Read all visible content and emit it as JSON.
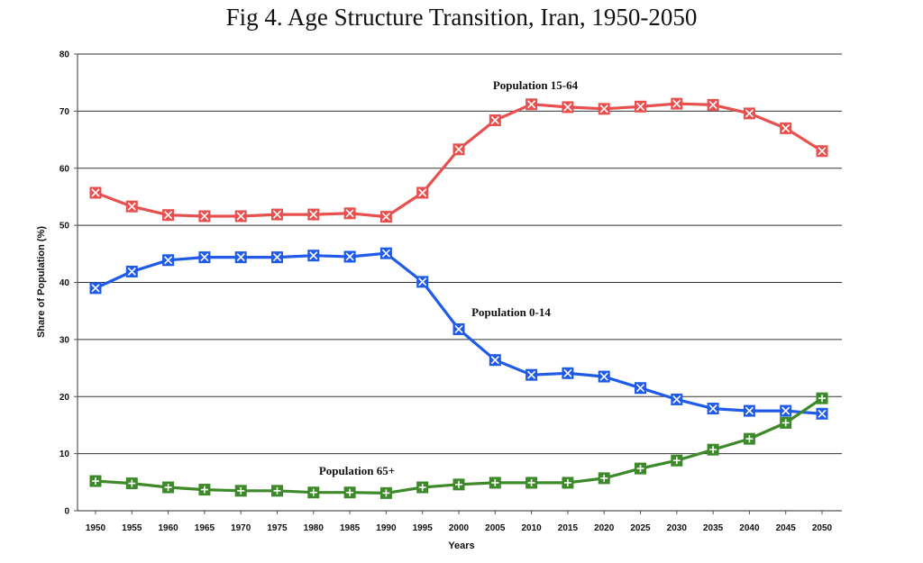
{
  "chart_data": {
    "type": "line",
    "title": "Fig 4. Age Structure Transition, Iran, 1950-2050",
    "xlabel": "Years",
    "ylabel": "Share of Population (%)",
    "ylim": [
      0,
      80
    ],
    "yticks": [
      "0",
      "10",
      "20",
      "30",
      "40",
      "50",
      "60",
      "70",
      "80"
    ],
    "grid": "horizontal",
    "legend": "none (inline labels)",
    "x": [
      "1950",
      "1955",
      "1960",
      "1965",
      "1970",
      "1975",
      "1980",
      "1985",
      "1990",
      "1995",
      "2000",
      "2005",
      "2010",
      "2015",
      "2020",
      "2025",
      "2030",
      "2035",
      "2040",
      "2045",
      "2050"
    ],
    "series": [
      {
        "name": "Population 15-64",
        "color": "#e8504f",
        "marker": "x-box",
        "values": [
          55.7,
          53.3,
          51.8,
          51.6,
          51.6,
          51.9,
          51.9,
          52.1,
          51.5,
          55.7,
          63.3,
          68.4,
          71.2,
          70.7,
          70.4,
          70.8,
          71.3,
          71.1,
          69.6,
          67.0,
          63.0
        ]
      },
      {
        "name": "Population 0-14",
        "color": "#1f5be8",
        "marker": "x-box",
        "values": [
          39.0,
          41.9,
          43.9,
          44.4,
          44.4,
          44.4,
          44.7,
          44.5,
          45.1,
          40.1,
          31.8,
          26.4,
          23.8,
          24.1,
          23.5,
          21.5,
          19.5,
          17.9,
          17.5,
          17.5,
          17.0
        ]
      },
      {
        "name": "Population 65+",
        "color": "#3e8a2b",
        "marker": "plus-box",
        "values": [
          5.2,
          4.8,
          4.1,
          3.7,
          3.5,
          3.5,
          3.2,
          3.2,
          3.1,
          4.1,
          4.6,
          4.9,
          4.9,
          4.9,
          5.7,
          7.4,
          8.8,
          10.7,
          12.6,
          15.4,
          19.7
        ]
      }
    ]
  }
}
